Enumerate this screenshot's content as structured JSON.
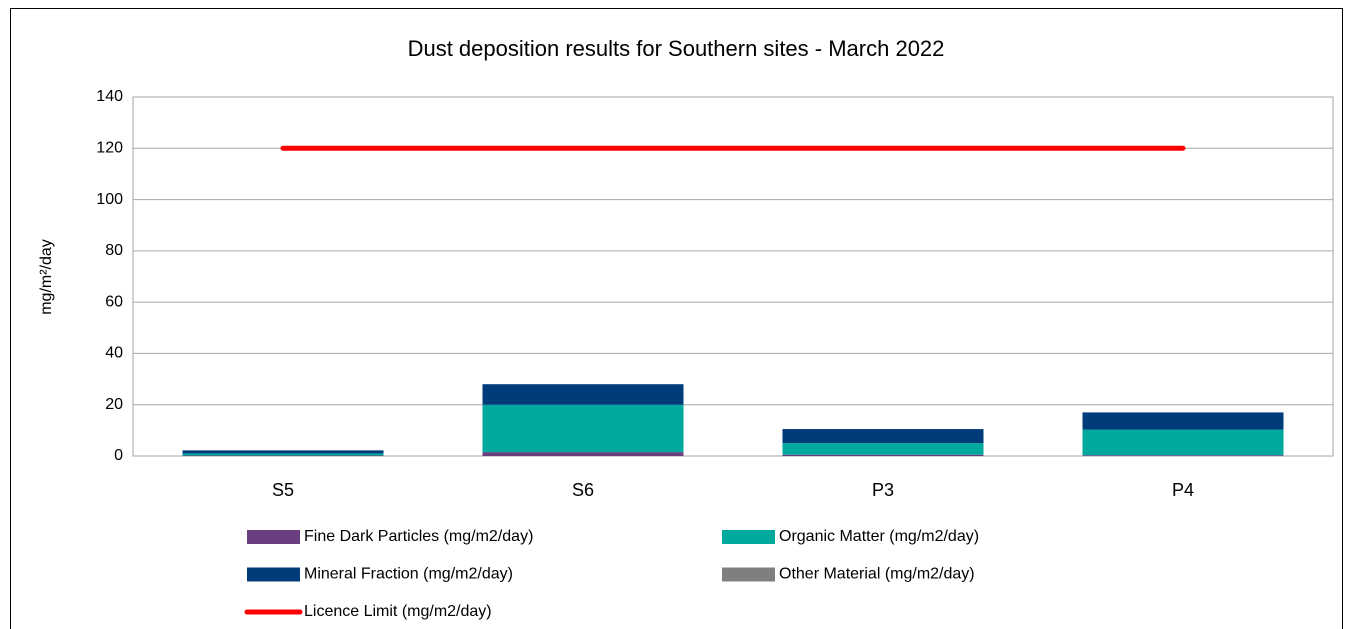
{
  "chart_data": {
    "type": "bar",
    "stacked": true,
    "title": "Dust deposition results for Southern sites - March 2022",
    "y_label": "mg/m²/day",
    "categories": [
      "S5",
      "S6",
      "P3",
      "P4"
    ],
    "series": [
      {
        "name": "Fine Dark Particles (mg/m2/day)",
        "color": "#6b3f7f",
        "values": [
          0.2,
          1.5,
          0.5,
          0.3
        ]
      },
      {
        "name": "Organic Matter (mg/m2/day)",
        "color": "#00a99d",
        "values": [
          0.8,
          18.5,
          4.5,
          10
        ]
      },
      {
        "name": "Mineral Fraction (mg/m2/day)",
        "color": "#003b7a",
        "values": [
          1.2,
          8,
          5.5,
          6.7
        ]
      },
      {
        "name": "Other Material (mg/m2/day)",
        "color": "#7f7f7f",
        "values": [
          0,
          0,
          0,
          0
        ]
      },
      {
        "name": "Licence Limit  (mg/m2/day)",
        "color": "#ff0000",
        "type": "line",
        "values": [
          120,
          120,
          120,
          120
        ]
      }
    ],
    "ylim": [
      0,
      140
    ],
    "yticks": [
      0,
      20,
      40,
      60,
      80,
      100,
      120,
      140
    ],
    "grid": true
  }
}
